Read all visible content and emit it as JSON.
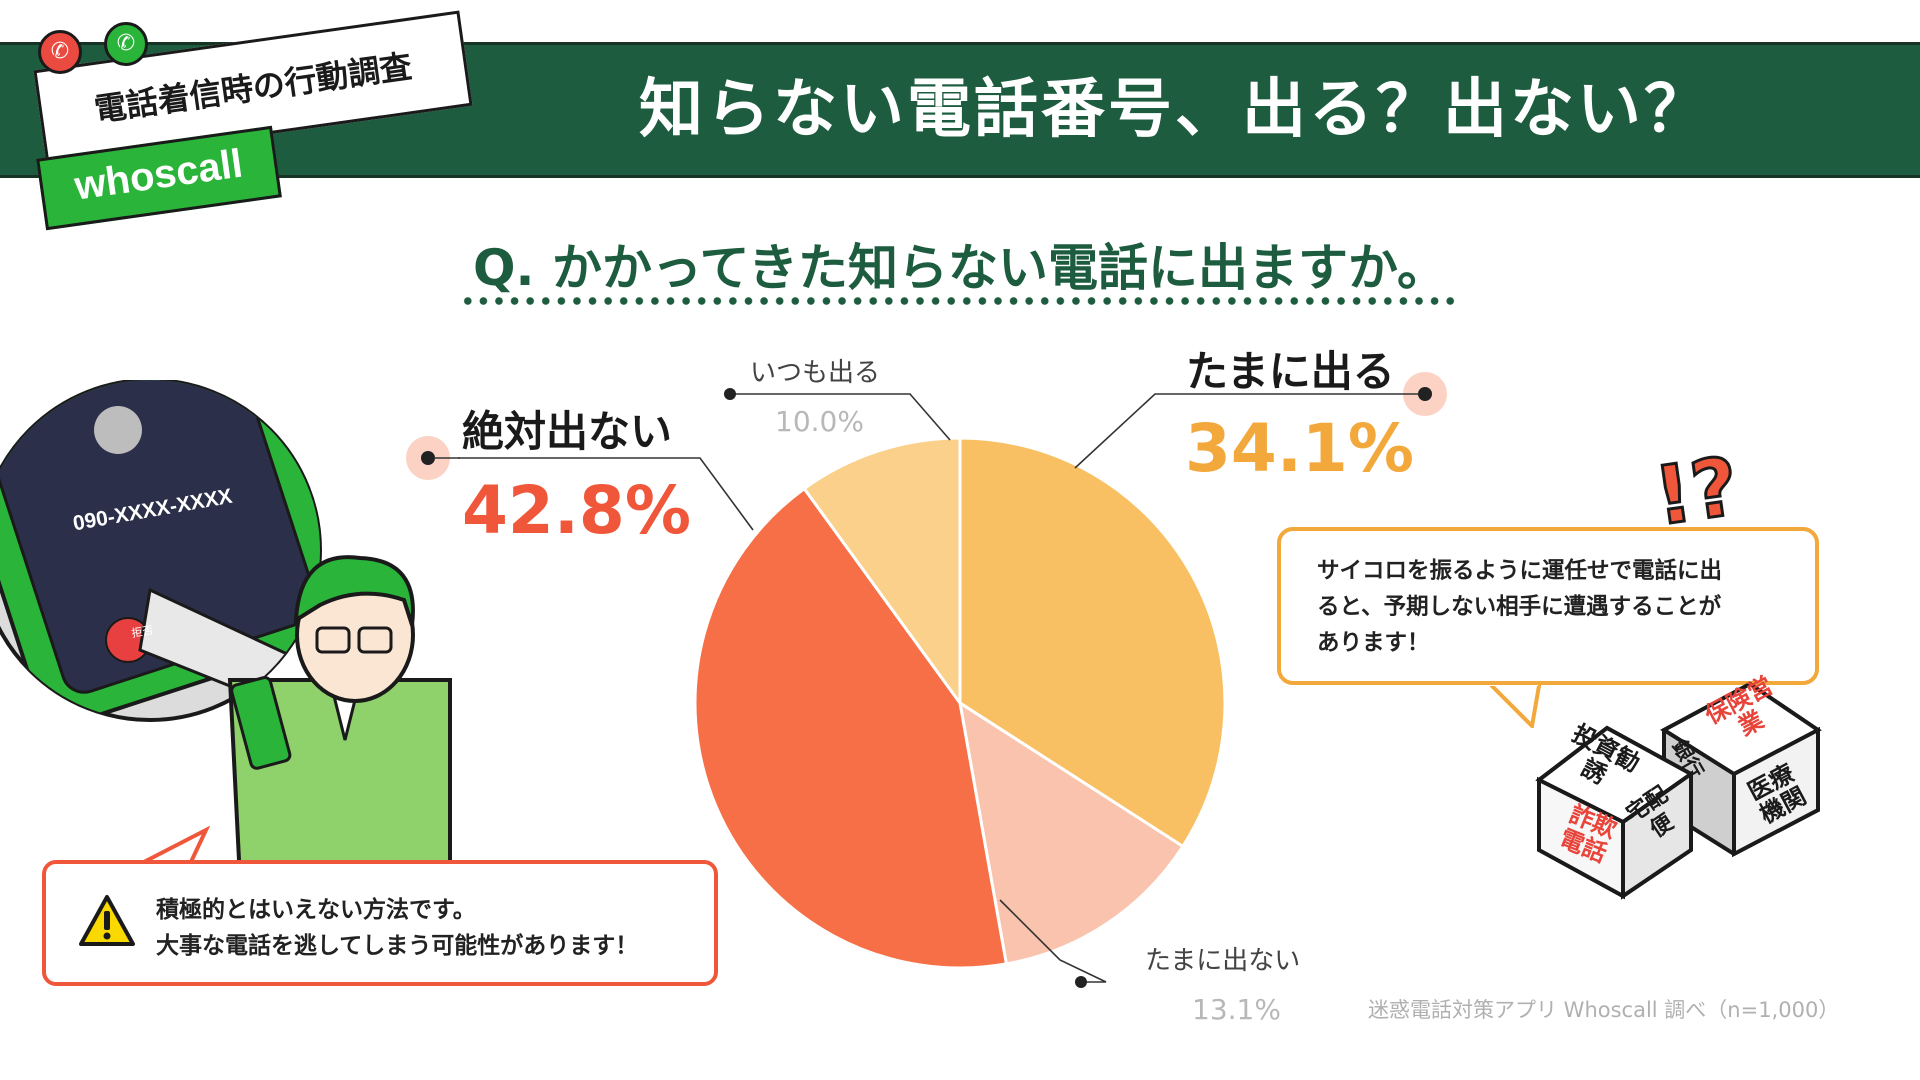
{
  "header": {
    "survey_label": "電話着信時の行動調査",
    "brand": "whoscall",
    "title": "知らない電話番号、出る？出ない？"
  },
  "question": "Q. かかってきた知らない電話に出ますか。",
  "colors": {
    "banner": "#1d5c3f",
    "brand_green": "#2ab53a",
    "slice_tamani_deru": "#f9c063",
    "slice_tamani_denai": "#fac3ae",
    "slice_zettai_denai": "#f66f47",
    "slice_itsumo_deru": "#fad08b",
    "accent_orange": "#f3a83b",
    "accent_red": "#f0573a"
  },
  "chart_data": {
    "type": "pie",
    "slices": [
      {
        "label": "たまに出る",
        "value": 34.1,
        "display": "34.1%"
      },
      {
        "label": "たまに出ない",
        "value": 13.1,
        "display": "13.1%"
      },
      {
        "label": "絶対出ない",
        "value": 42.8,
        "display": "42.8%"
      },
      {
        "label": "いつも出る",
        "value": 10.0,
        "display": "10.0%"
      }
    ],
    "start": "12 o'clock",
    "direction": "clockwise"
  },
  "phone": {
    "number": "090-XXXX-XXXX",
    "decline_label": "拒否"
  },
  "right_bubble": {
    "lines": [
      "サイコロを振るように運任せで電話に出",
      "ると、予期しない相手に遭遇することが",
      "あります！"
    ]
  },
  "left_bubble": {
    "lines": [
      "積極的とはいえない方法です。",
      "大事な電話を逃してしまう可能性があります！"
    ],
    "icon": "warning-icon"
  },
  "exclaim": "!?",
  "dice": {
    "die1": {
      "top": "投資勧誘",
      "front": "詐欺電話",
      "side": "宅配便"
    },
    "die2": {
      "top": "保険営業",
      "front": "医療機関",
      "side": "銀行"
    }
  },
  "source": "迷惑電話対策アプリ Whoscall 調べ（n=1,000）"
}
